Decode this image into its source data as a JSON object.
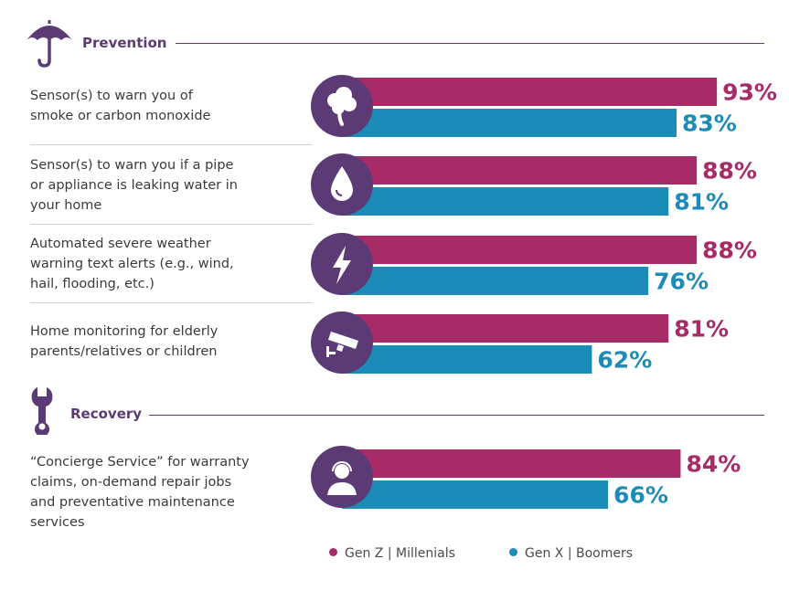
{
  "chart_data": {
    "type": "bar",
    "orientation": "horizontal",
    "xlim": [
      0,
      100
    ],
    "sections": [
      {
        "title": "Prevention",
        "icon": "umbrella-icon"
      },
      {
        "title": "Recovery",
        "icon": "wrench-icon"
      }
    ],
    "categories": [
      "Sensor(s) to warn you of smoke or carbon monoxide",
      "Sensor(s) to warn you if a pipe or appliance is leaking water in your home",
      "Automated severe weather warning text alerts (e.g., wind, hail, flooding, etc.)",
      "Home monitoring for elderly parents/relatives or children",
      "“Concierge Service” for warranty claims, on-demand repair jobs and preventative maintenance services"
    ],
    "label_lines": [
      [
        "Sensor(s) to warn you of",
        "smoke or carbon monoxide"
      ],
      [
        "Sensor(s) to warn you if a pipe",
        "or appliance is leaking water in",
        "your home"
      ],
      [
        "Automated severe weather",
        "warning text alerts (e.g., wind,",
        "hail, flooding, etc.)"
      ],
      [
        "Home monitoring for elderly",
        "parents/relatives or children"
      ],
      [
        "“Concierge Service” for warranty",
        "claims, on-demand repair jobs",
        "and preventative maintenance",
        "services"
      ]
    ],
    "category_icons": [
      "smoke-icon",
      "water-drop-icon",
      "lightning-icon",
      "security-camera-icon",
      "headset-agent-icon"
    ],
    "category_section": [
      "Prevention",
      "Prevention",
      "Prevention",
      "Prevention",
      "Recovery"
    ],
    "series": [
      {
        "name": "Gen Z | Millenials",
        "color": "#a62b67",
        "values": [
          93,
          88,
          88,
          81,
          84
        ],
        "labels": [
          "93%",
          "88%",
          "88%",
          "81%",
          "84%"
        ]
      },
      {
        "name": "Gen X | Boomers",
        "color": "#1b8bb8",
        "values": [
          83,
          81,
          76,
          62,
          66
        ],
        "labels": [
          "83%",
          "81%",
          "76%",
          "62%",
          "66%"
        ]
      }
    ],
    "legend": "bottom-center"
  },
  "colors": {
    "accent": "#5b3a76",
    "gen_z": "#a62b67",
    "gen_x": "#1b8bb8"
  }
}
